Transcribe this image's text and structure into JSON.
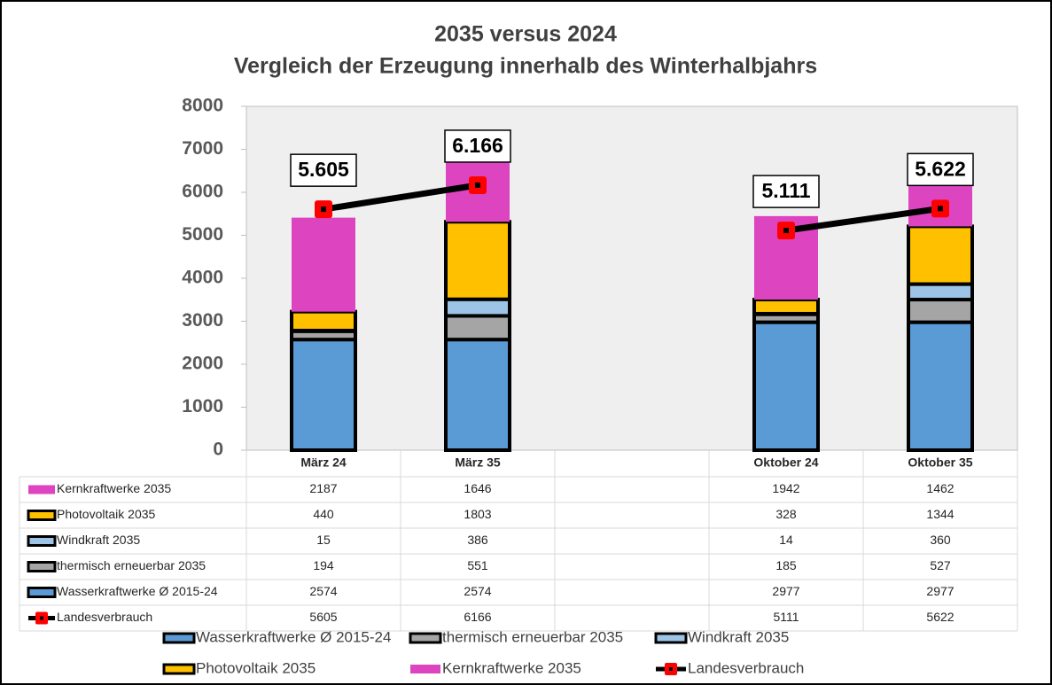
{
  "chart_data": {
    "type": "bar",
    "stacked": true,
    "title": "2035 versus 2024",
    "subtitle": "Vergleich der Erzeugung innerhalb des Winterhalbjahrs",
    "categories": [
      "März 24",
      "März 35",
      null,
      "Oktober 24",
      "Oktober 35"
    ],
    "ylim": [
      0,
      8000
    ],
    "yticks": [
      0,
      1000,
      2000,
      3000,
      4000,
      5000,
      6000,
      7000,
      8000
    ],
    "series": [
      {
        "name": "Wasserkraftwerke Ø 2015-24",
        "color": "#5b9bd5",
        "edgecolor": "#000000",
        "values": [
          2574,
          2574,
          null,
          2977,
          2977
        ]
      },
      {
        "name": "thermisch erneuerbar 2035",
        "color": "#a5a5a5",
        "edgecolor": "#000000",
        "values": [
          194,
          551,
          null,
          185,
          527
        ]
      },
      {
        "name": "Windkraft 2035",
        "color": "#9dc3e6",
        "edgecolor": "#000000",
        "values": [
          15,
          386,
          null,
          14,
          360
        ]
      },
      {
        "name": "Photovoltaik 2035",
        "color": "#ffc000",
        "edgecolor": "#000000",
        "values": [
          440,
          1803,
          null,
          328,
          1344
        ]
      },
      {
        "name": "Kernkraftwerke 2035",
        "color": "#dd44c0",
        "values": [
          2187,
          1646,
          null,
          1942,
          1462
        ]
      },
      {
        "name": "Landesverbrauch",
        "type": "line",
        "color": "#ff0000",
        "values": [
          5605,
          6166,
          null,
          5111,
          5622
        ],
        "value_labels": [
          "5.605",
          "6.166",
          null,
          "5.111",
          "5.622"
        ]
      }
    ],
    "table_order": [
      4,
      3,
      2,
      1,
      0,
      5
    ]
  }
}
